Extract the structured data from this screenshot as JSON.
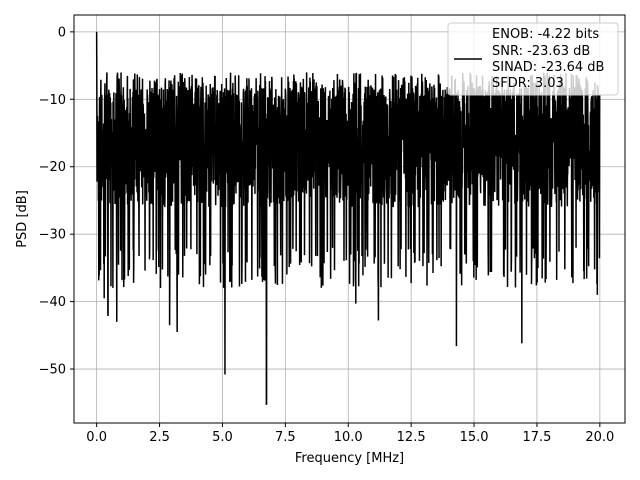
{
  "chart_data": {
    "type": "line",
    "title": "",
    "xlabel": "Frequency [MHz]",
    "ylabel": "PSD [dB]",
    "xlim": [
      -0.9,
      21.0
    ],
    "ylim": [
      -58,
      2.5
    ],
    "xticks": [
      0.0,
      2.5,
      5.0,
      7.5,
      10.0,
      12.5,
      15.0,
      17.5,
      20.0
    ],
    "xtick_labels": [
      "0.0",
      "2.5",
      "5.0",
      "7.5",
      "10.0",
      "12.5",
      "15.0",
      "17.5",
      "20.0"
    ],
    "yticks": [
      0,
      -10,
      -20,
      -30,
      -40,
      -50
    ],
    "ytick_labels": [
      "0",
      "−10",
      "−20",
      "−30",
      "−40",
      "−50"
    ],
    "grid": true,
    "legend_position": "top-right",
    "legend_lines": [
      "ENOB: -4.22 bits",
      "SNR: -23.63 dB",
      "SINAD: -23.64 dB",
      "SFDR: 3.03"
    ],
    "series": [
      {
        "color": "#000000",
        "x_range": [
          0.0,
          20.0
        ],
        "peak": {
          "x": 0.0,
          "y": 0.0
        },
        "noise_floor_typical_range": [
          -30,
          -8
        ],
        "notable_dips": [
          {
            "x": 0.3,
            "y": -39.5
          },
          {
            "x": 0.45,
            "y": -42.0
          },
          {
            "x": 0.8,
            "y": -43.0
          },
          {
            "x": 2.9,
            "y": -43.5
          },
          {
            "x": 3.2,
            "y": -44.5
          },
          {
            "x": 5.1,
            "y": -50.8
          },
          {
            "x": 6.75,
            "y": -55.2
          },
          {
            "x": 10.3,
            "y": -40.3
          },
          {
            "x": 11.2,
            "y": -42.8
          },
          {
            "x": 14.3,
            "y": -46.6
          },
          {
            "x": 16.9,
            "y": -46.2
          },
          {
            "x": 19.9,
            "y": -39.0
          }
        ]
      }
    ]
  }
}
